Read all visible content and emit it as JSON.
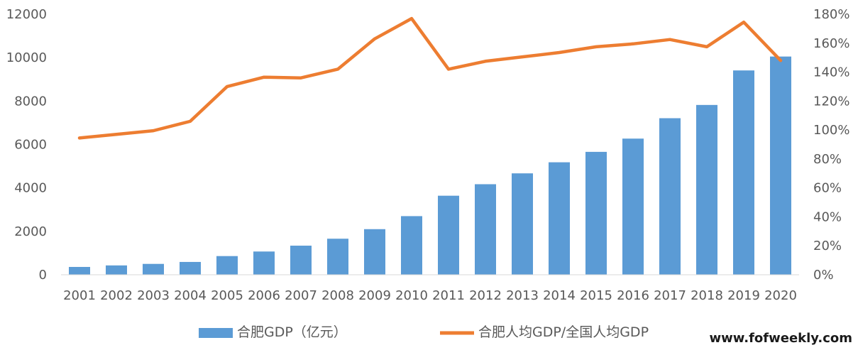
{
  "chart_data": {
    "type": "bar+line",
    "categories": [
      "2001",
      "2002",
      "2003",
      "2004",
      "2005",
      "2006",
      "2007",
      "2008",
      "2009",
      "2010",
      "2011",
      "2012",
      "2013",
      "2014",
      "2015",
      "2016",
      "2017",
      "2018",
      "2019",
      "2020"
    ],
    "series": [
      {
        "name": "合肥GDP（亿元）",
        "type": "bar",
        "axis": "left",
        "color": "#5B9BD5",
        "values": [
          360,
          430,
          500,
          590,
          860,
          1070,
          1340,
          1660,
          2100,
          2700,
          3640,
          4170,
          4670,
          5180,
          5660,
          6270,
          7210,
          7820,
          9410,
          10050
        ]
      },
      {
        "name": "合肥人均GDP/全国人均GDP",
        "type": "line",
        "axis": "right",
        "color": "#ED7D31",
        "values": [
          0.945,
          0.97,
          0.995,
          1.06,
          1.3,
          1.365,
          1.36,
          1.42,
          1.63,
          1.77,
          1.42,
          1.475,
          1.505,
          1.535,
          1.575,
          1.595,
          1.625,
          1.575,
          1.745,
          1.48
        ]
      }
    ],
    "y_left": {
      "min": 0,
      "max": 12000,
      "ticks": [
        0,
        2000,
        4000,
        6000,
        8000,
        10000,
        12000
      ]
    },
    "y_right": {
      "min": 0,
      "max": 1.8,
      "ticks": [
        "0%",
        "20%",
        "40%",
        "60%",
        "80%",
        "100%",
        "120%",
        "140%",
        "160%",
        "180%"
      ]
    },
    "grid": false,
    "legend_position": "bottom"
  },
  "watermark": "www.fofweekly.com"
}
